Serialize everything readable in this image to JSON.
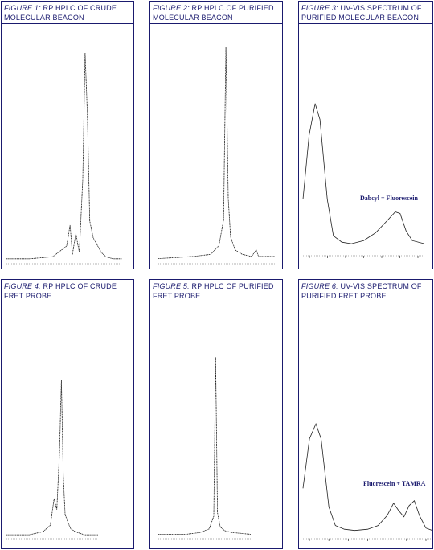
{
  "figures": [
    {
      "fig": "FIGURE 1:",
      "line1": " RP HPLC OF CRUDE",
      "line2": "MOLECULAR BEACON"
    },
    {
      "fig": "FIGURE 2:",
      "line1": " RP HPLC OF PURIFIED",
      "line2": "MOLECULAR BEACON"
    },
    {
      "fig": "FIGURE 3:",
      "line1": " UV-VIS SPECTRUM OF",
      "line2": "PURIFIED MOLECULAR BEACON"
    },
    {
      "fig": "FIGURE 4:",
      "line1": " RP HPLC OF CRUDE",
      "line2": "FRET PROBE"
    },
    {
      "fig": "FIGURE 5:",
      "line1": " RP HPLC OF PURIFIED",
      "line2": "FRET PROBE"
    },
    {
      "fig": "FIGURE 6:",
      "line1": " UV-VIS SPECTRUM OF",
      "line2": "PURIFIED FRET PROBE"
    }
  ],
  "chart_data": [
    {
      "type": "line",
      "title": "FIGURE 1: RP HPLC OF CRUDE MOLECULAR BEACON",
      "series": [
        {
          "values": [
            [
              0,
              2
            ],
            [
              20,
              2
            ],
            [
              40,
              3
            ],
            [
              52,
              8
            ],
            [
              55,
              18
            ],
            [
              57,
              4
            ],
            [
              60,
              14
            ],
            [
              63,
              5
            ],
            [
              66,
              40
            ],
            [
              68,
              100
            ],
            [
              70,
              70
            ],
            [
              72,
              20
            ],
            [
              75,
              12
            ],
            [
              78,
              9
            ],
            [
              82,
              5
            ],
            [
              86,
              3
            ],
            [
              92,
              2
            ],
            [
              100,
              2
            ]
          ]
        }
      ],
      "xlim": [
        0,
        100
      ],
      "ylim": [
        0,
        105
      ]
    },
    {
      "type": "line",
      "title": "FIGURE 2: RP HPLC OF PURIFIED MOLECULAR BEACON",
      "series": [
        {
          "values": [
            [
              0,
              2
            ],
            [
              30,
              3
            ],
            [
              45,
              4
            ],
            [
              52,
              8
            ],
            [
              56,
              20
            ],
            [
              58,
              100
            ],
            [
              60,
              30
            ],
            [
              62,
              12
            ],
            [
              66,
              6
            ],
            [
              72,
              4
            ],
            [
              80,
              3
            ],
            [
              84,
              6
            ],
            [
              86,
              3
            ],
            [
              100,
              3
            ]
          ]
        }
      ],
      "xlim": [
        0,
        100
      ],
      "ylim": [
        0,
        105
      ]
    },
    {
      "type": "line",
      "title": "FIGURE 3: UV-VIS SPECTRUM OF PURIFIED MOLECULAR BEACON",
      "series": [
        {
          "values": [
            [
              0,
              35
            ],
            [
              5,
              75
            ],
            [
              10,
              95
            ],
            [
              14,
              85
            ],
            [
              20,
              35
            ],
            [
              25,
              12
            ],
            [
              32,
              8
            ],
            [
              40,
              7
            ],
            [
              50,
              9
            ],
            [
              60,
              14
            ],
            [
              70,
              22
            ],
            [
              76,
              27
            ],
            [
              80,
              26
            ],
            [
              85,
              15
            ],
            [
              90,
              9
            ],
            [
              100,
              7
            ]
          ]
        }
      ],
      "annotations": [
        "Dabcyl + Fluorescein"
      ],
      "xlim": [
        0,
        100
      ],
      "ylim": [
        0,
        105
      ]
    },
    {
      "type": "line",
      "title": "FIGURE 4: RP HPLC OF CRUDE FRET PROBE",
      "series": [
        {
          "values": [
            [
              0,
              2
            ],
            [
              25,
              2
            ],
            [
              40,
              4
            ],
            [
              48,
              8
            ],
            [
              52,
              25
            ],
            [
              55,
              18
            ],
            [
              58,
              55
            ],
            [
              60,
              100
            ],
            [
              62,
              40
            ],
            [
              64,
              15
            ],
            [
              67,
              10
            ],
            [
              70,
              6
            ],
            [
              75,
              4
            ],
            [
              85,
              2
            ],
            [
              100,
              2
            ]
          ]
        }
      ],
      "xlim": [
        0,
        100
      ],
      "ylim": [
        0,
        105
      ]
    },
    {
      "type": "line",
      "title": "FIGURE 5: RP HPLC OF PURIFIED FRET PROBE",
      "series": [
        {
          "values": [
            [
              0,
              2
            ],
            [
              30,
              2
            ],
            [
              45,
              3
            ],
            [
              55,
              5
            ],
            [
              60,
              12
            ],
            [
              62,
              100
            ],
            [
              64,
              14
            ],
            [
              67,
              6
            ],
            [
              72,
              4
            ],
            [
              80,
              3
            ],
            [
              100,
              2
            ]
          ]
        }
      ],
      "xlim": [
        0,
        100
      ],
      "ylim": [
        0,
        105
      ]
    },
    {
      "type": "line",
      "title": "FIGURE 6: UV-VIS SPECTRUM OF PURIFIED FRET PROBE",
      "series": [
        {
          "values": [
            [
              0,
              40
            ],
            [
              5,
              80
            ],
            [
              10,
              92
            ],
            [
              14,
              80
            ],
            [
              20,
              25
            ],
            [
              25,
              10
            ],
            [
              32,
              7
            ],
            [
              40,
              6
            ],
            [
              50,
              7
            ],
            [
              58,
              10
            ],
            [
              65,
              18
            ],
            [
              70,
              28
            ],
            [
              74,
              22
            ],
            [
              78,
              17
            ],
            [
              82,
              26
            ],
            [
              86,
              30
            ],
            [
              90,
              18
            ],
            [
              95,
              8
            ],
            [
              100,
              6
            ]
          ]
        }
      ],
      "annotations": [
        "Fluorescein + TAMRA"
      ],
      "xlim": [
        0,
        100
      ],
      "ylim": [
        0,
        105
      ]
    }
  ]
}
